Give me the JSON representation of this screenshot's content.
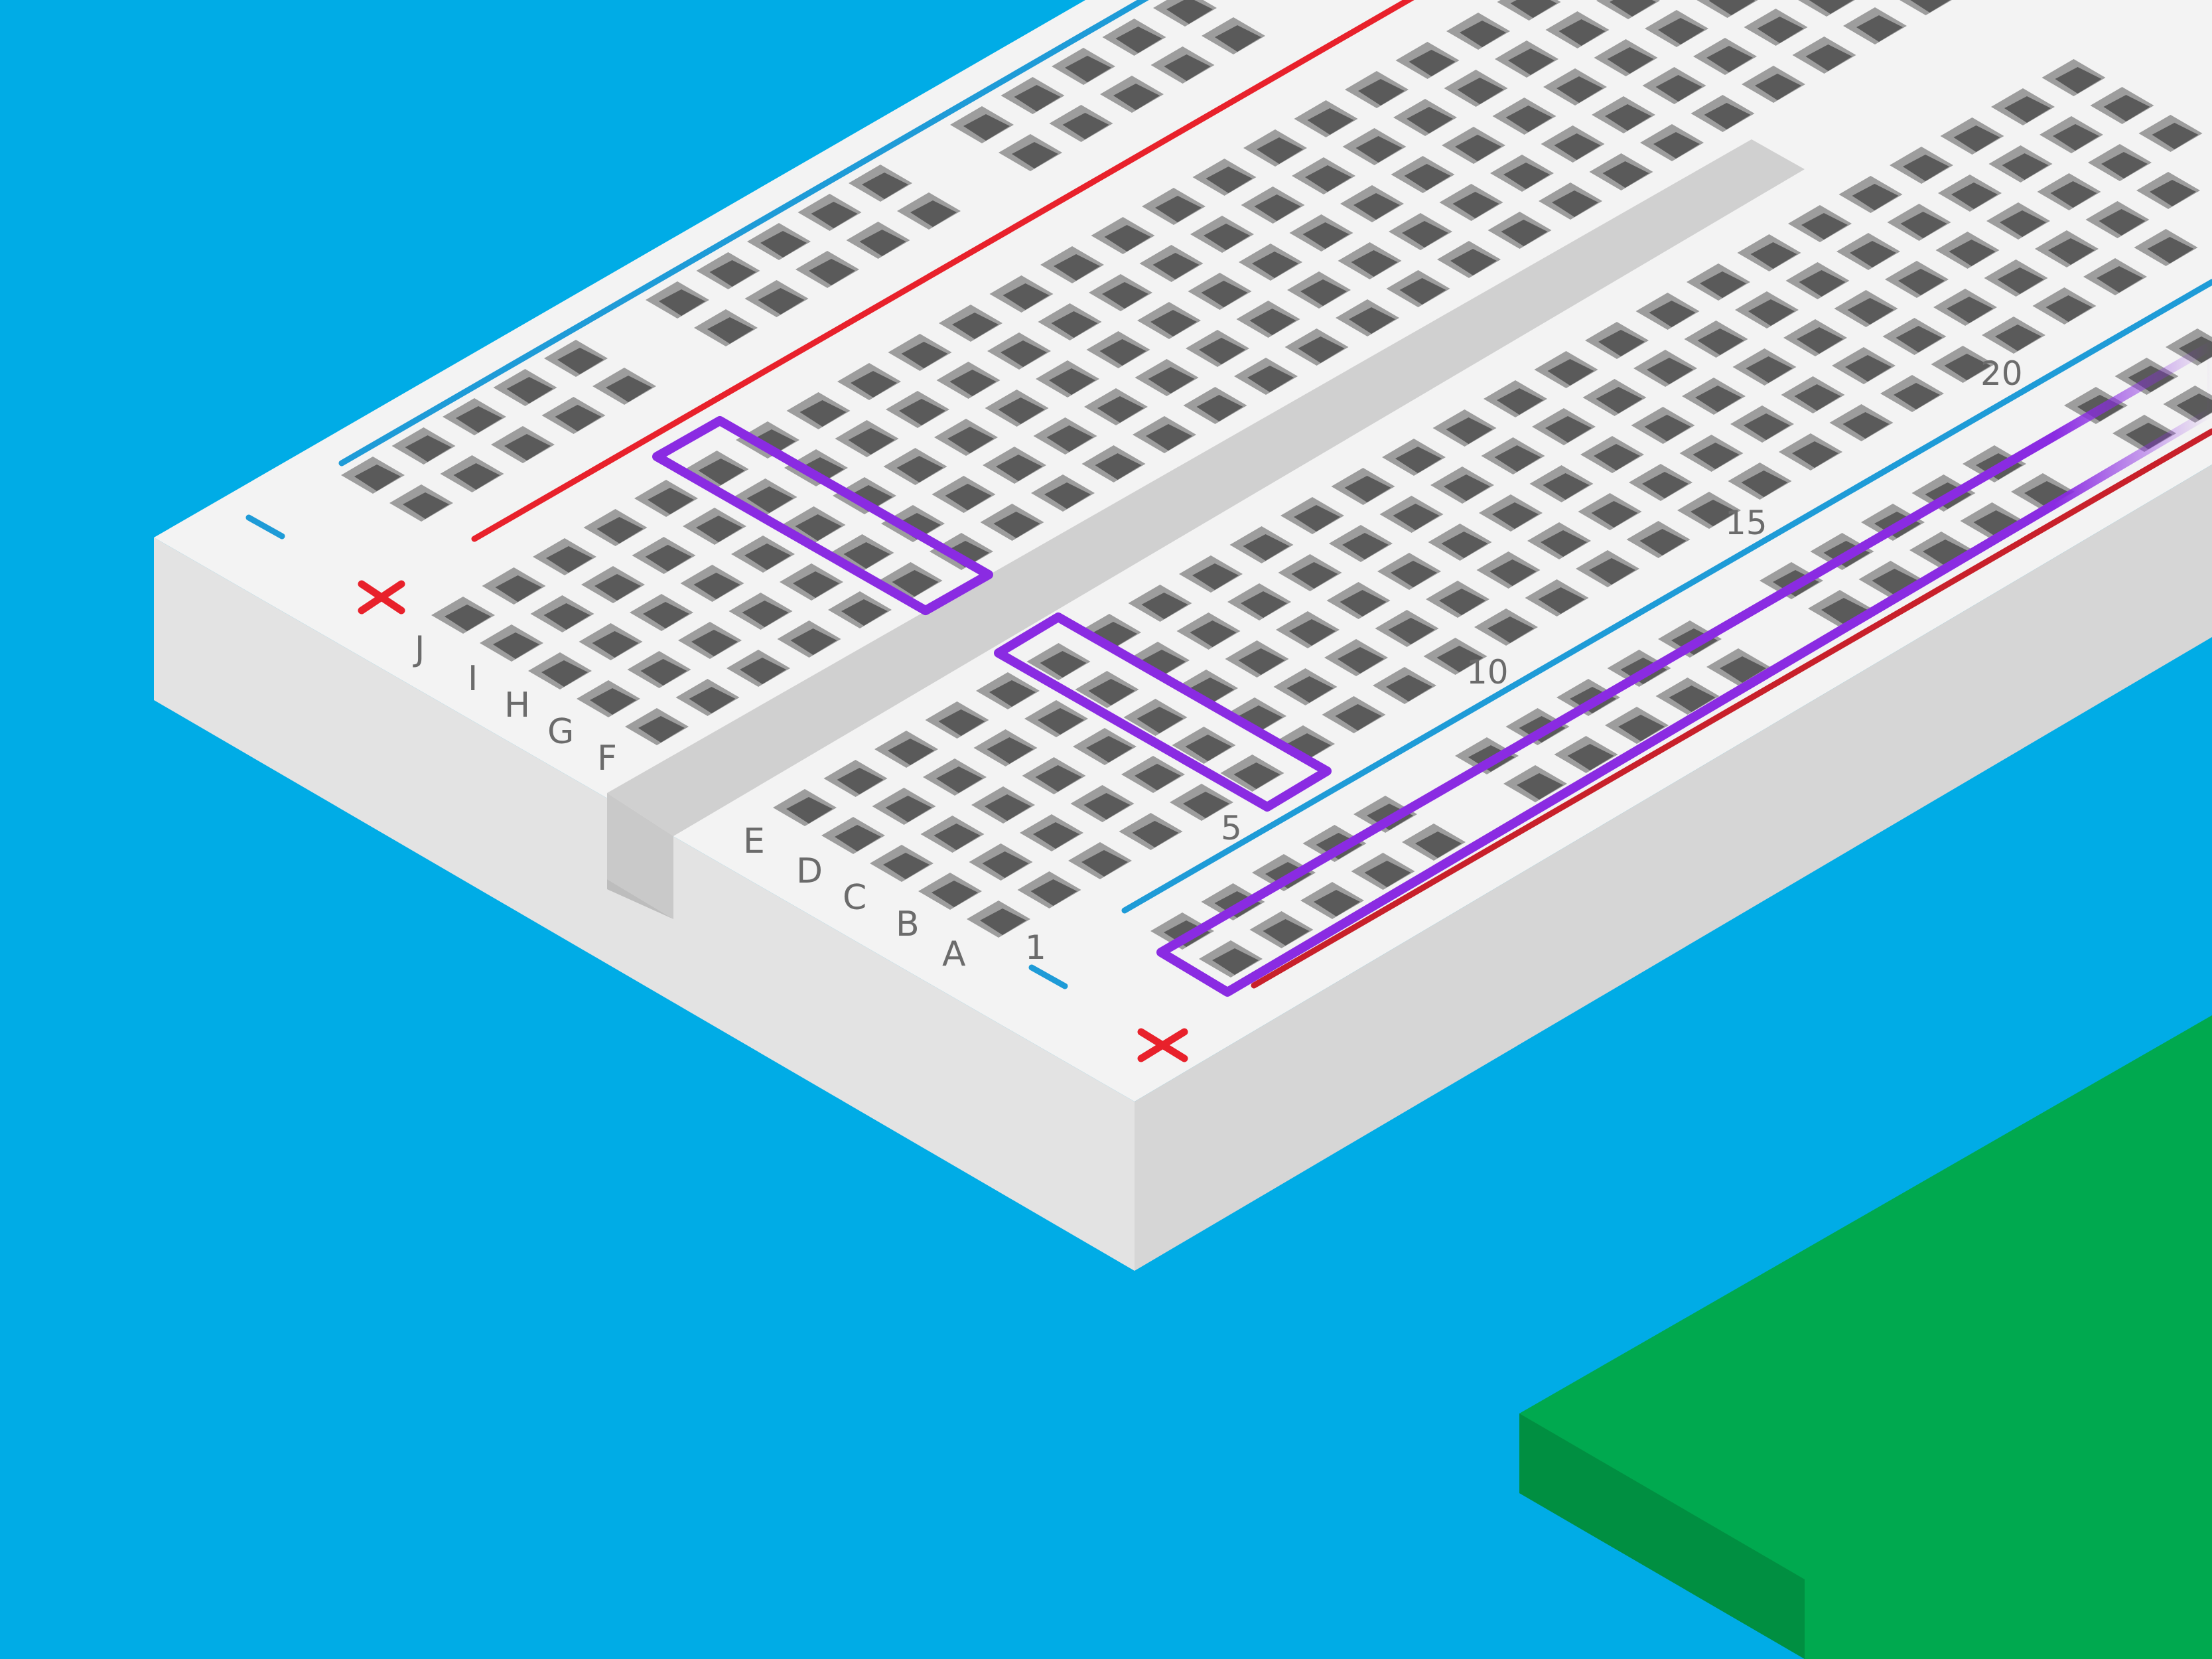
{
  "board": {
    "rows_top": [
      "J",
      "I",
      "H",
      "G",
      "F"
    ],
    "rows_bottom": [
      "E",
      "D",
      "C",
      "B",
      "A"
    ],
    "column_numbers": [
      "1",
      "5",
      "10",
      "15",
      "20"
    ],
    "rail_minus_symbol": "—",
    "rail_plus_symbol": "✕"
  },
  "colors": {
    "background": "#00ace6",
    "board_top": "#f3f3f3",
    "board_front": "#e1e1e1",
    "board_side": "#d2d2d2",
    "hole_wall": "#9d9d9d",
    "hole_floor": "#5a5a5a",
    "rail_red": "#e8212b",
    "rail_blue": "#1e9bd7",
    "highlight": "#8a2be2",
    "green_block": "#00a94f"
  },
  "icons": {
    "plus": "plus-icon",
    "minus": "minus-icon"
  }
}
